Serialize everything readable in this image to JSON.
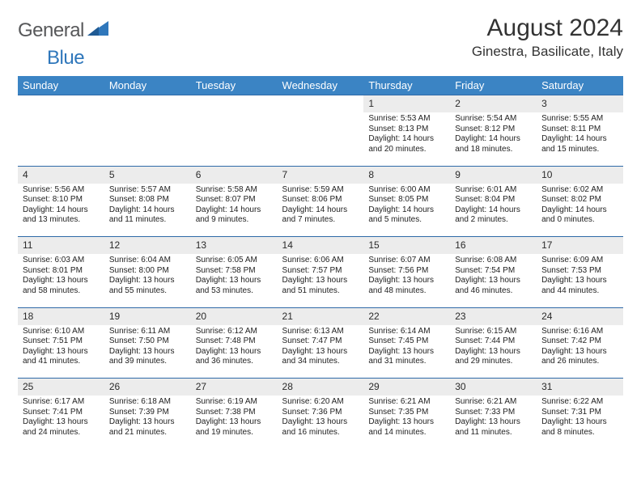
{
  "logo": {
    "word1": "General",
    "word2": "Blue"
  },
  "header": {
    "title": "August 2024",
    "location": "Ginestra, Basilicate, Italy"
  },
  "colors": {
    "header_bg": "#3b84c4",
    "header_text": "#ffffff",
    "daynum_bg": "#ececec",
    "rule": "#2f6aa8",
    "body_text": "#222222",
    "logo_gray": "#57585a",
    "logo_blue": "#2f77bb"
  },
  "day_names": [
    "Sunday",
    "Monday",
    "Tuesday",
    "Wednesday",
    "Thursday",
    "Friday",
    "Saturday"
  ],
  "weeks": [
    [
      null,
      null,
      null,
      null,
      {
        "n": "1",
        "sunrise": "Sunrise: 5:53 AM",
        "sunset": "Sunset: 8:13 PM",
        "daylight": "Daylight: 14 hours and 20 minutes."
      },
      {
        "n": "2",
        "sunrise": "Sunrise: 5:54 AM",
        "sunset": "Sunset: 8:12 PM",
        "daylight": "Daylight: 14 hours and 18 minutes."
      },
      {
        "n": "3",
        "sunrise": "Sunrise: 5:55 AM",
        "sunset": "Sunset: 8:11 PM",
        "daylight": "Daylight: 14 hours and 15 minutes."
      }
    ],
    [
      {
        "n": "4",
        "sunrise": "Sunrise: 5:56 AM",
        "sunset": "Sunset: 8:10 PM",
        "daylight": "Daylight: 14 hours and 13 minutes."
      },
      {
        "n": "5",
        "sunrise": "Sunrise: 5:57 AM",
        "sunset": "Sunset: 8:08 PM",
        "daylight": "Daylight: 14 hours and 11 minutes."
      },
      {
        "n": "6",
        "sunrise": "Sunrise: 5:58 AM",
        "sunset": "Sunset: 8:07 PM",
        "daylight": "Daylight: 14 hours and 9 minutes."
      },
      {
        "n": "7",
        "sunrise": "Sunrise: 5:59 AM",
        "sunset": "Sunset: 8:06 PM",
        "daylight": "Daylight: 14 hours and 7 minutes."
      },
      {
        "n": "8",
        "sunrise": "Sunrise: 6:00 AM",
        "sunset": "Sunset: 8:05 PM",
        "daylight": "Daylight: 14 hours and 5 minutes."
      },
      {
        "n": "9",
        "sunrise": "Sunrise: 6:01 AM",
        "sunset": "Sunset: 8:04 PM",
        "daylight": "Daylight: 14 hours and 2 minutes."
      },
      {
        "n": "10",
        "sunrise": "Sunrise: 6:02 AM",
        "sunset": "Sunset: 8:02 PM",
        "daylight": "Daylight: 14 hours and 0 minutes."
      }
    ],
    [
      {
        "n": "11",
        "sunrise": "Sunrise: 6:03 AM",
        "sunset": "Sunset: 8:01 PM",
        "daylight": "Daylight: 13 hours and 58 minutes."
      },
      {
        "n": "12",
        "sunrise": "Sunrise: 6:04 AM",
        "sunset": "Sunset: 8:00 PM",
        "daylight": "Daylight: 13 hours and 55 minutes."
      },
      {
        "n": "13",
        "sunrise": "Sunrise: 6:05 AM",
        "sunset": "Sunset: 7:58 PM",
        "daylight": "Daylight: 13 hours and 53 minutes."
      },
      {
        "n": "14",
        "sunrise": "Sunrise: 6:06 AM",
        "sunset": "Sunset: 7:57 PM",
        "daylight": "Daylight: 13 hours and 51 minutes."
      },
      {
        "n": "15",
        "sunrise": "Sunrise: 6:07 AM",
        "sunset": "Sunset: 7:56 PM",
        "daylight": "Daylight: 13 hours and 48 minutes."
      },
      {
        "n": "16",
        "sunrise": "Sunrise: 6:08 AM",
        "sunset": "Sunset: 7:54 PM",
        "daylight": "Daylight: 13 hours and 46 minutes."
      },
      {
        "n": "17",
        "sunrise": "Sunrise: 6:09 AM",
        "sunset": "Sunset: 7:53 PM",
        "daylight": "Daylight: 13 hours and 44 minutes."
      }
    ],
    [
      {
        "n": "18",
        "sunrise": "Sunrise: 6:10 AM",
        "sunset": "Sunset: 7:51 PM",
        "daylight": "Daylight: 13 hours and 41 minutes."
      },
      {
        "n": "19",
        "sunrise": "Sunrise: 6:11 AM",
        "sunset": "Sunset: 7:50 PM",
        "daylight": "Daylight: 13 hours and 39 minutes."
      },
      {
        "n": "20",
        "sunrise": "Sunrise: 6:12 AM",
        "sunset": "Sunset: 7:48 PM",
        "daylight": "Daylight: 13 hours and 36 minutes."
      },
      {
        "n": "21",
        "sunrise": "Sunrise: 6:13 AM",
        "sunset": "Sunset: 7:47 PM",
        "daylight": "Daylight: 13 hours and 34 minutes."
      },
      {
        "n": "22",
        "sunrise": "Sunrise: 6:14 AM",
        "sunset": "Sunset: 7:45 PM",
        "daylight": "Daylight: 13 hours and 31 minutes."
      },
      {
        "n": "23",
        "sunrise": "Sunrise: 6:15 AM",
        "sunset": "Sunset: 7:44 PM",
        "daylight": "Daylight: 13 hours and 29 minutes."
      },
      {
        "n": "24",
        "sunrise": "Sunrise: 6:16 AM",
        "sunset": "Sunset: 7:42 PM",
        "daylight": "Daylight: 13 hours and 26 minutes."
      }
    ],
    [
      {
        "n": "25",
        "sunrise": "Sunrise: 6:17 AM",
        "sunset": "Sunset: 7:41 PM",
        "daylight": "Daylight: 13 hours and 24 minutes."
      },
      {
        "n": "26",
        "sunrise": "Sunrise: 6:18 AM",
        "sunset": "Sunset: 7:39 PM",
        "daylight": "Daylight: 13 hours and 21 minutes."
      },
      {
        "n": "27",
        "sunrise": "Sunrise: 6:19 AM",
        "sunset": "Sunset: 7:38 PM",
        "daylight": "Daylight: 13 hours and 19 minutes."
      },
      {
        "n": "28",
        "sunrise": "Sunrise: 6:20 AM",
        "sunset": "Sunset: 7:36 PM",
        "daylight": "Daylight: 13 hours and 16 minutes."
      },
      {
        "n": "29",
        "sunrise": "Sunrise: 6:21 AM",
        "sunset": "Sunset: 7:35 PM",
        "daylight": "Daylight: 13 hours and 14 minutes."
      },
      {
        "n": "30",
        "sunrise": "Sunrise: 6:21 AM",
        "sunset": "Sunset: 7:33 PM",
        "daylight": "Daylight: 13 hours and 11 minutes."
      },
      {
        "n": "31",
        "sunrise": "Sunrise: 6:22 AM",
        "sunset": "Sunset: 7:31 PM",
        "daylight": "Daylight: 13 hours and 8 minutes."
      }
    ]
  ]
}
